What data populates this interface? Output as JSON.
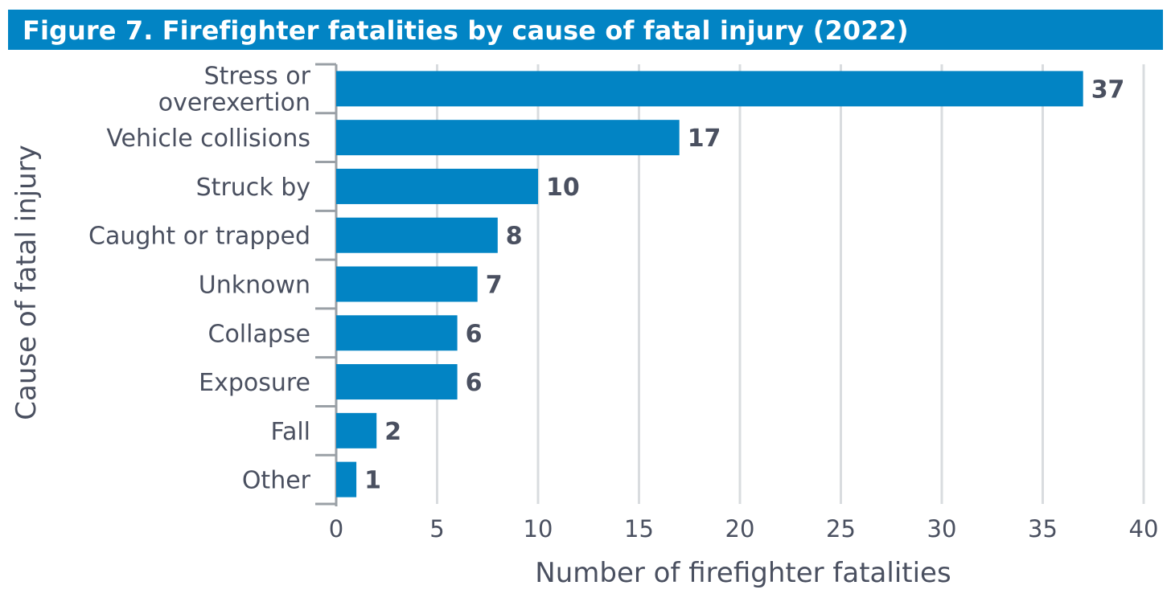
{
  "chart_data": {
    "type": "bar",
    "orientation": "horizontal",
    "title": "Figure 7. Firefighter fatalities by cause of fatal injury (2022)",
    "categories": [
      [
        "Stress or",
        "overexertion"
      ],
      [
        "Vehicle collisions"
      ],
      [
        "Struck by"
      ],
      [
        "Caught or trapped"
      ],
      [
        "Unknown"
      ],
      [
        "Collapse"
      ],
      [
        "Exposure"
      ],
      [
        "Fall"
      ],
      [
        "Other"
      ]
    ],
    "values": [
      37,
      17,
      10,
      8,
      7,
      6,
      6,
      2,
      1
    ],
    "xlabel": "Number of firefighter fatalities",
    "ylabel": "Cause of fatal injury",
    "xlim": [
      0,
      40
    ],
    "xticks": [
      0,
      5,
      10,
      15,
      20,
      25,
      30,
      35,
      40
    ],
    "grid": true,
    "colors": {
      "bar": "#0284c4",
      "title_bg": "#0284c4",
      "grid": "#d9dcdf",
      "axis": "#9aa0a6",
      "text": "#4a5060"
    }
  }
}
